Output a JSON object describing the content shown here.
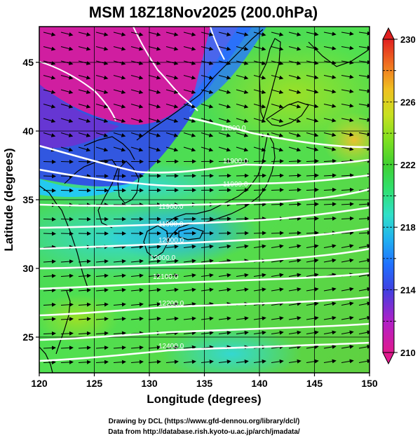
{
  "title": "MSM 18Z18Nov2025 (200.0hPa)",
  "xlabel": "Longitude (degrees)",
  "ylabel": "Latitude  (degrees)",
  "credit_line1": "Drawing by DCL (https://www.gfd-dennou.org/library/dcl/)",
  "credit_line2": "Data from http://database.rish.kyoto-u.ac.jp/arch/jmadata/",
  "chart_data": {
    "type": "heatmap",
    "title": "MSM 18Z18Nov2025 (200.0hPa)",
    "xlabel": "Longitude (degrees)",
    "ylabel": "Latitude  (degrees)",
    "xlim": [
      120,
      150
    ],
    "ylim": [
      22.4,
      47.6
    ],
    "x_ticks": [
      "120",
      "125",
      "130",
      "135",
      "140",
      "145",
      "150"
    ],
    "y_ticks": [
      "25",
      "30",
      "35",
      "40",
      "45"
    ],
    "colorbar": {
      "min": 210,
      "max": 230,
      "ticks": [
        "210",
        "214",
        "218",
        "222",
        "226",
        "230"
      ],
      "colors": [
        "#e01a8e",
        "#b020c8",
        "#4040e0",
        "#2070ff",
        "#20b0f0",
        "#30e0c8",
        "#30e070",
        "#40d030",
        "#80e020",
        "#c8e020",
        "#f0c020",
        "#f07020",
        "#e02020"
      ]
    },
    "shading": "temperature (K)",
    "contours": {
      "quantity": "geopotential height",
      "labels": [
        "11800.0",
        "11900.0",
        "11900.0",
        "11900.0",
        "11900.0",
        "12000.0",
        "12000.0",
        "12100.0",
        "12200.0",
        "12300.0",
        "12400.0"
      ]
    },
    "vectors": "wind (arrows, predominantly westerly/west-southwesterly)",
    "grid": true
  }
}
